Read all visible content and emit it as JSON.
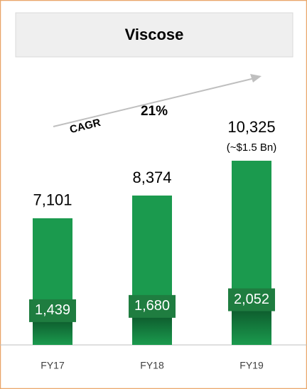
{
  "chart_data": {
    "type": "bar",
    "title": "Viscose",
    "categories": [
      "FY17",
      "FY18",
      "FY19"
    ],
    "values": [
      7101,
      8374,
      10325
    ],
    "value_labels": [
      "7,101",
      "8,374",
      "10,325"
    ],
    "inner_values": [
      1439,
      1680,
      2052
    ],
    "inner_value_labels": [
      "1,439",
      "1,680",
      "2,052"
    ],
    "color": "#1b9a4e",
    "inner_color": "#0f6a34",
    "ylim": [
      0,
      12000
    ],
    "annotations": {
      "cagr_label": "CAGR",
      "cagr_value": "21%",
      "fy19_note": "(~$1.5 Bn)"
    }
  }
}
